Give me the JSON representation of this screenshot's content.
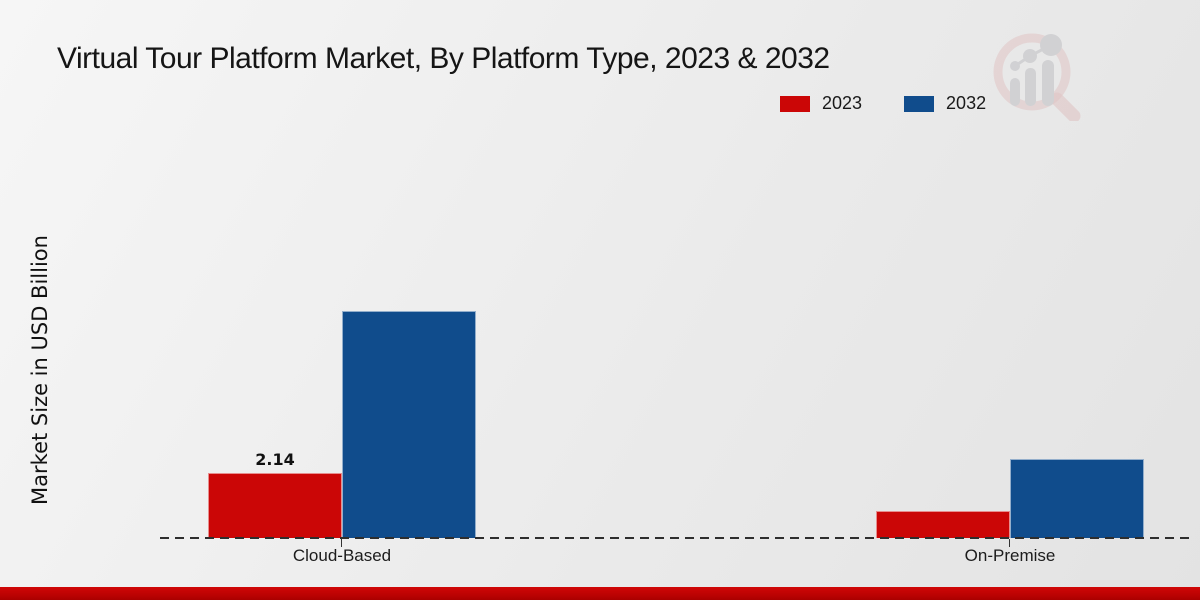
{
  "chart": {
    "title": "Virtual Tour Platform Market, By Platform Type, 2023 & 2032",
    "ylabel": "Market Size in USD Billion",
    "bar_label": "2.14"
  },
  "chart_data": {
    "type": "bar",
    "title": "Virtual Tour Platform Market, By Platform Type, 2023 & 2032",
    "xlabel": "",
    "ylabel": "Market Size in USD Billion",
    "categories": [
      "Cloud-Based",
      "On-Premise"
    ],
    "series": [
      {
        "name": "2023",
        "color": "#cb0606",
        "values": [
          2.14,
          0.89
        ]
      },
      {
        "name": "2032",
        "color": "#104c8c",
        "values": [
          7.47,
          2.6
        ]
      }
    ],
    "ylim": [
      0,
      8.86
    ],
    "grid": false,
    "legend_position": "top-right",
    "annotations": [
      {
        "text": "2.14",
        "category": "Cloud-Based",
        "series": "2023"
      }
    ],
    "baseline_style": "dashed",
    "accent_bar_color": "#b80202",
    "watermark": "market-research-future-logo"
  }
}
